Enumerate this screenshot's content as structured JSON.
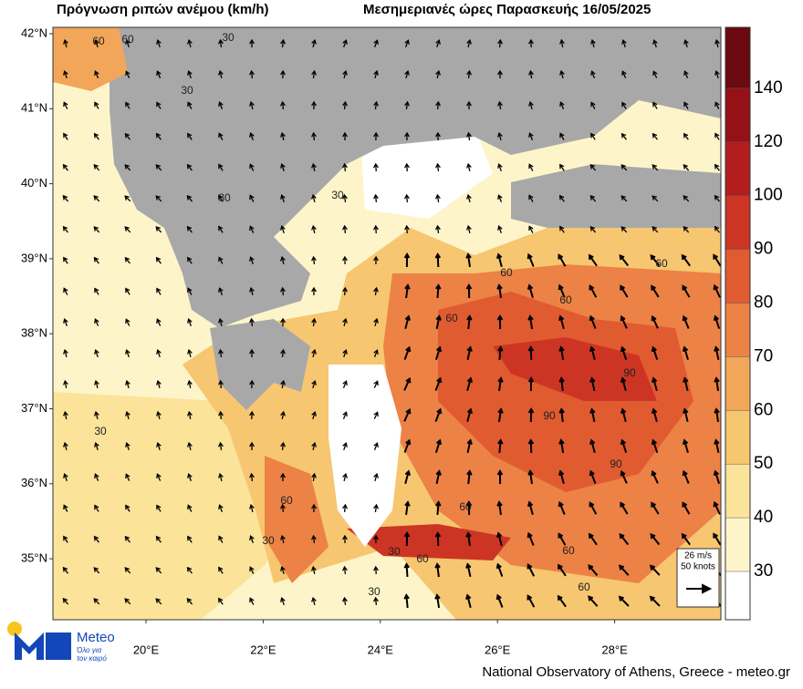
{
  "header": {
    "title_left": "Πρόγνωση ριπών ανέμου (km/h)",
    "title_right": "Μεσημεριανές ώρες Παρασκευής 16/05/2025"
  },
  "lat_labels": [
    "42°N",
    "41°N",
    "40°N",
    "39°N",
    "38°N",
    "37°N",
    "36°N",
    "35°N"
  ],
  "lon_labels": [
    "20°E",
    "22°E",
    "24°E",
    "26°E",
    "28°E"
  ],
  "colorbar": {
    "levels": [
      30,
      40,
      50,
      60,
      70,
      80,
      90,
      100,
      120,
      140
    ],
    "colors": [
      "#ffffff",
      "#fdf5c9",
      "#fbe39a",
      "#f7c670",
      "#f2a65a",
      "#ec8245",
      "#e15b31",
      "#cc3524",
      "#b31d1d",
      "#951116",
      "#6b0a10"
    ]
  },
  "reference_vector": {
    "speed": "26 m/s",
    "knots": "50 knots"
  },
  "contour_labels": [
    "60",
    "60",
    "30",
    "30",
    "30",
    "30",
    "30",
    "60",
    "60",
    "60",
    "90",
    "90",
    "60",
    "30",
    "60",
    "60",
    "60",
    "90",
    "30",
    "30",
    "60",
    "60"
  ],
  "logo": {
    "name": "Meteo",
    "tagline_1": "Όλο για",
    "tagline_2": "τον καιρό"
  },
  "footer": "National Observatory of Athens, Greece - meteo.gr"
}
